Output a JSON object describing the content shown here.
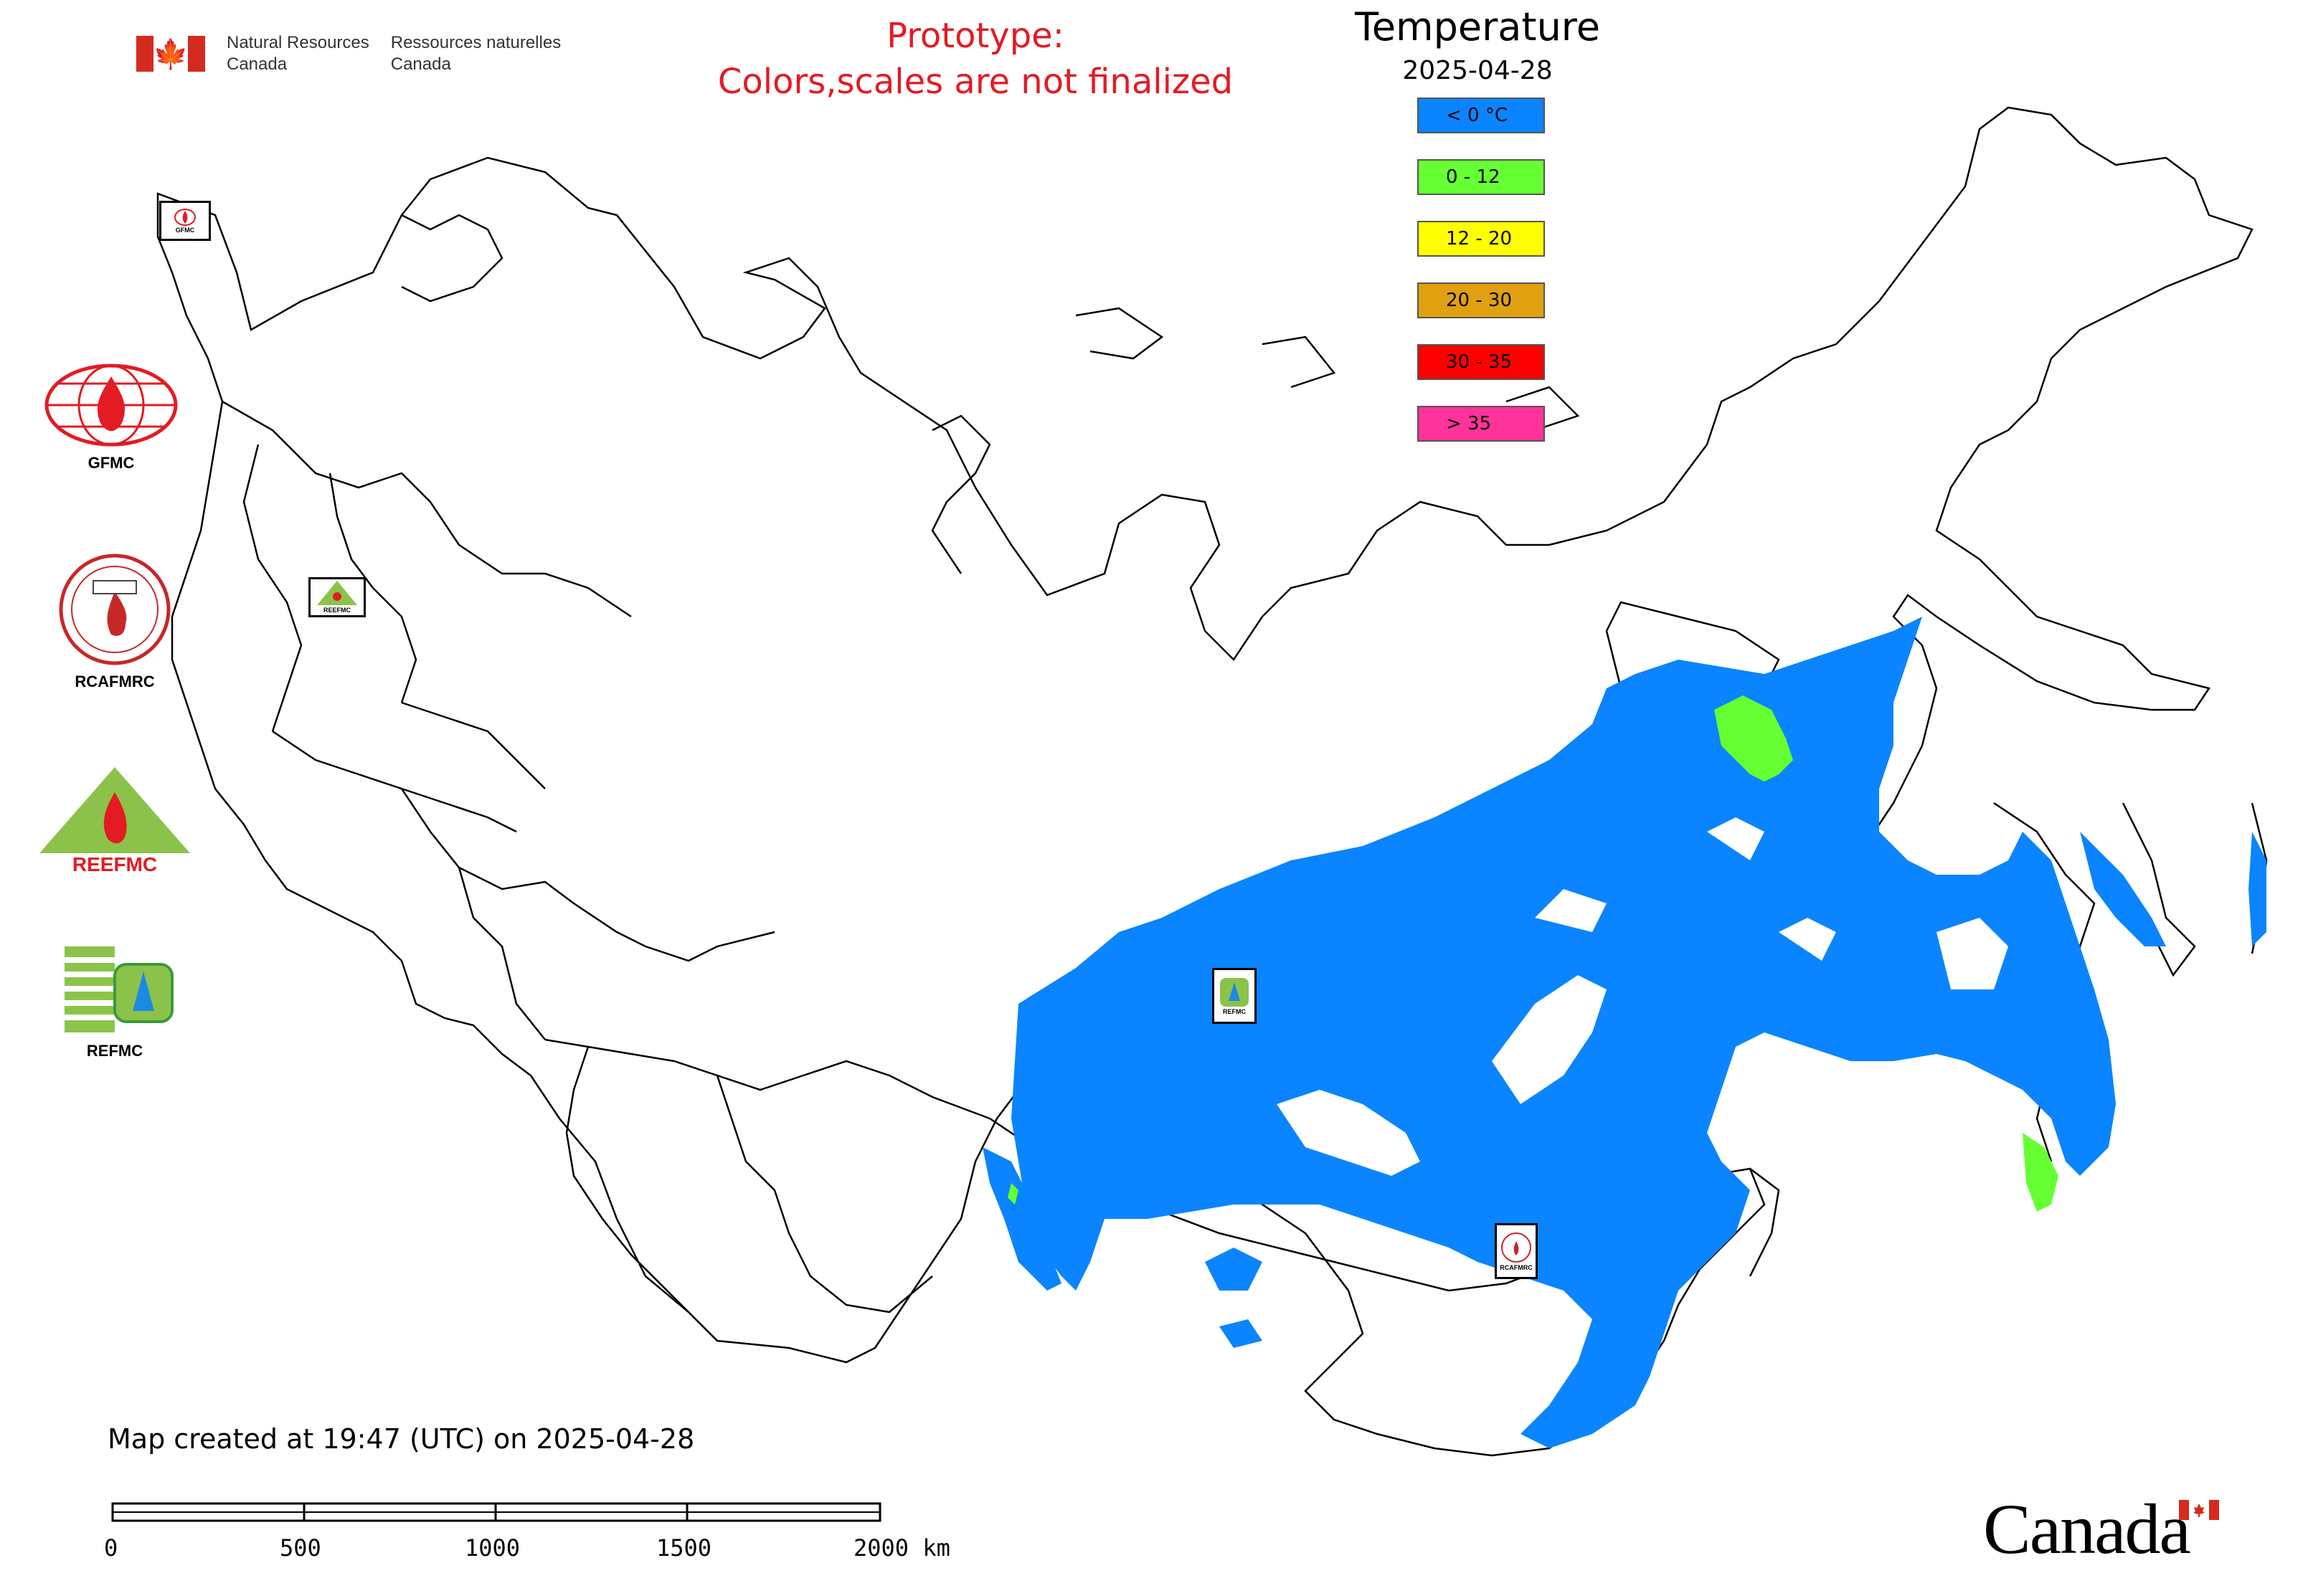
{
  "header": {
    "dept_en_line1": "Natural Resources",
    "dept_en_line2": "Canada",
    "dept_fr_line1": "Ressources naturelles",
    "dept_fr_line2": "Canada",
    "prototype_line1": "Prototype:",
    "prototype_line2": "Colors,scales are not finalized"
  },
  "legend": {
    "title": "Temperature",
    "date": "2025-04-28",
    "items": [
      {
        "label": "< 0 °C",
        "color": "#0a84ff"
      },
      {
        "label": "0 - 12",
        "color": "#66ff33"
      },
      {
        "label": "12 - 20",
        "color": "#ffff00"
      },
      {
        "label": "20 - 30",
        "color": "#e0a010"
      },
      {
        "label": "30 - 35",
        "color": "#ff0000"
      },
      {
        "label": "> 35",
        "color": "#ff3399"
      }
    ]
  },
  "side_logos": [
    {
      "label": "GFMC"
    },
    {
      "label": "RCAFMRC"
    },
    {
      "label": "REEFMC"
    },
    {
      "label": "REFMC"
    }
  ],
  "map_markers": [
    {
      "name": "GFMC"
    },
    {
      "name": "REEFMC"
    },
    {
      "name": "REFMC"
    },
    {
      "name": "RCAFMRC"
    }
  ],
  "footer": {
    "created": "Map created at 19:47 (UTC) on 2025-04-28",
    "scale_labels": [
      "0",
      "500",
      "1000",
      "1500",
      "2000 km"
    ],
    "wordmark": "Canada"
  }
}
